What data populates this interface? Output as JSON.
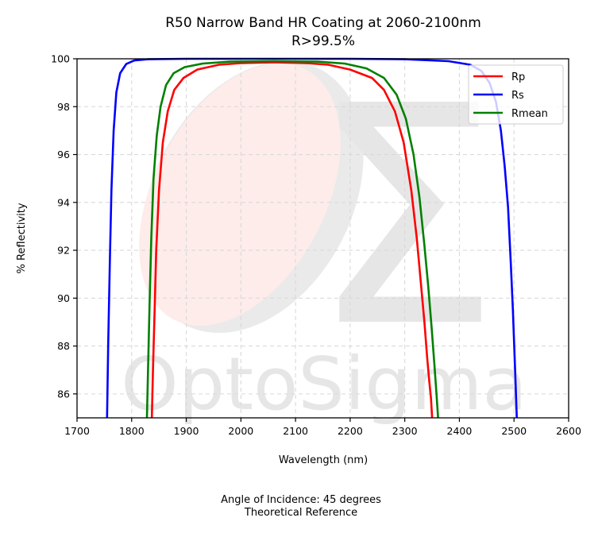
{
  "chart_data": {
    "type": "line",
    "title": "R50 Narrow Band HR Coating at 2060-2100nm",
    "subtitle": "R>99.5%",
    "xlabel": "Wavelength (nm)",
    "ylabel": "% Reflectivity",
    "xlim": [
      1700,
      2600
    ],
    "ylim": [
      85,
      100
    ],
    "xticks": [
      1700,
      1800,
      1900,
      2000,
      2100,
      2200,
      2300,
      2400,
      2500,
      2600
    ],
    "yticks": [
      86,
      88,
      90,
      92,
      94,
      96,
      98,
      100
    ],
    "grid": true,
    "legend_position": "top-right",
    "series": [
      {
        "name": "Rp",
        "color": "#ff0000",
        "x": [
          1837,
          1839,
          1842,
          1845,
          1850,
          1857,
          1866,
          1878,
          1895,
          1920,
          1960,
          2000,
          2060,
          2120,
          2160,
          2200,
          2240,
          2262,
          2282,
          2298,
          2312,
          2322,
          2330,
          2336,
          2341,
          2345,
          2348,
          2350
        ],
        "y": [
          85,
          87,
          89.5,
          92,
          94.5,
          96.5,
          97.8,
          98.7,
          99.2,
          99.55,
          99.75,
          99.82,
          99.85,
          99.82,
          99.75,
          99.55,
          99.2,
          98.7,
          97.8,
          96.5,
          94.5,
          92.5,
          90.5,
          89,
          87.5,
          86.5,
          85.8,
          85
        ]
      },
      {
        "name": "Rs",
        "color": "#0000ff",
        "x": [
          1755,
          1757,
          1760,
          1763,
          1767,
          1772,
          1779,
          1790,
          1805,
          1830,
          1900,
          2000,
          2100,
          2200,
          2300,
          2380,
          2420,
          2440,
          2455,
          2467,
          2476,
          2483,
          2489,
          2494,
          2498,
          2502,
          2505
        ],
        "y": [
          85,
          88,
          91.5,
          94.5,
          97,
          98.6,
          99.4,
          99.78,
          99.93,
          99.98,
          100,
          100,
          100,
          100,
          99.98,
          99.9,
          99.75,
          99.5,
          99,
          98.2,
          97,
          95.5,
          93.8,
          91.5,
          89.5,
          87,
          85
        ]
      },
      {
        "name": "Rmean",
        "color": "#008000",
        "x": [
          1828,
          1830,
          1833,
          1836,
          1840,
          1846,
          1853,
          1863,
          1877,
          1897,
          1930,
          1980,
          2060,
          2140,
          2190,
          2230,
          2262,
          2285,
          2302,
          2316,
          2327,
          2336,
          2343,
          2349,
          2354,
          2358,
          2361
        ],
        "y": [
          85,
          87,
          90,
          92.5,
          95,
          96.8,
          98,
          98.9,
          99.4,
          99.65,
          99.8,
          99.88,
          99.9,
          99.88,
          99.8,
          99.6,
          99.2,
          98.5,
          97.5,
          96,
          94.2,
          92.2,
          90.5,
          88.8,
          87.3,
          86,
          85
        ]
      }
    ]
  },
  "watermark": {
    "text": "OptoSigma",
    "symbol": "Σ",
    "colors": {
      "gray": "#e6e6e6",
      "pink": "#fdecea"
    }
  },
  "footer": {
    "line1": "Angle of Incidence: 45 degrees",
    "line2": "Theoretical Reference"
  }
}
